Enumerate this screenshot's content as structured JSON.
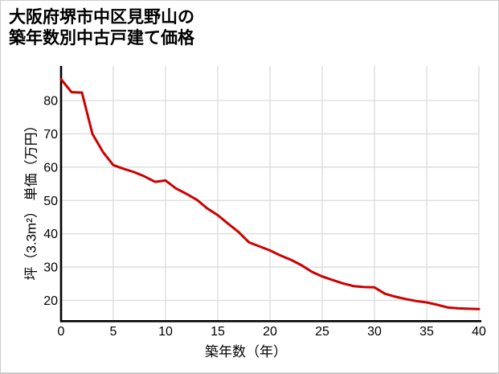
{
  "title": {
    "line1": "大阪府堺市中区見野山の",
    "line2": "築年数別中古戸建て価格"
  },
  "chart_data": {
    "type": "line",
    "title": "大阪府堺市中区見野山の築年数別中古戸建て価格",
    "xlabel": "築年数（年）",
    "ylabel": "坪（3.3m²） 単価（万円）",
    "x": [
      0,
      1,
      2,
      3,
      4,
      5,
      6,
      7,
      8,
      9,
      10,
      11,
      12,
      13,
      14,
      15,
      16,
      17,
      18,
      19,
      20,
      21,
      22,
      23,
      24,
      25,
      26,
      27,
      28,
      29,
      30,
      31,
      32,
      33,
      34,
      35,
      36,
      37,
      38,
      39,
      40
    ],
    "values": [
      86.4,
      82.5,
      82.4,
      70.0,
      64.6,
      60.6,
      59.5,
      58.5,
      57.2,
      55.6,
      56.0,
      53.6,
      52.0,
      50.2,
      47.6,
      45.6,
      43.0,
      40.5,
      37.4,
      36.2,
      35.0,
      33.5,
      32.2,
      30.6,
      28.6,
      27.2,
      26.1,
      25.1,
      24.3,
      24.0,
      23.9,
      22.0,
      21.1,
      20.4,
      19.8,
      19.4,
      18.7,
      17.9,
      17.6,
      17.5,
      17.4
    ],
    "x_ticks": [
      0,
      5,
      10,
      15,
      20,
      25,
      30,
      35,
      40
    ],
    "y_ticks": [
      20,
      30,
      40,
      50,
      60,
      70,
      80
    ],
    "xlim": [
      0,
      40
    ],
    "ylim": [
      13,
      90.5
    ],
    "grid": true,
    "legend": "none",
    "colors": {
      "line": "#cc0000",
      "grid": "#dcdcdc",
      "axis": "#000000",
      "text": "#000000",
      "background": "#ffffff",
      "border": "#cccccc"
    }
  }
}
